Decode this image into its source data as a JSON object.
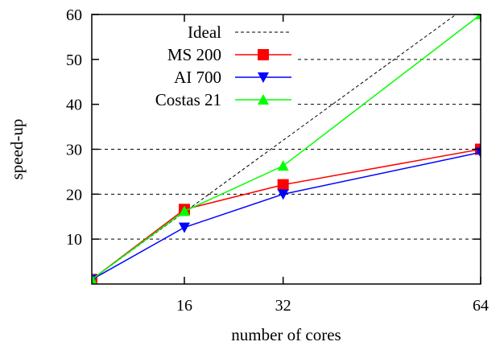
{
  "chart_data": {
    "type": "line",
    "title": "",
    "xlabel": "number of cores",
    "ylabel": "speed-up",
    "x_ticks": [
      16,
      32,
      64
    ],
    "y_ticks": [
      10,
      20,
      30,
      40,
      50,
      60
    ],
    "xlim": [
      1,
      64
    ],
    "ylim": [
      0,
      60
    ],
    "grid": "horizontal dashed",
    "legend_position": "top-left",
    "series": [
      {
        "name": "Ideal",
        "x": [
          1,
          64
        ],
        "y": [
          1,
          64
        ],
        "color": "#000000",
        "style": "dashed",
        "marker": "none"
      },
      {
        "name": "MS 200",
        "x": [
          1,
          16,
          32,
          64
        ],
        "y": [
          1,
          16.6,
          22.1,
          30
        ],
        "color": "#ff0000",
        "style": "solid",
        "marker": "square"
      },
      {
        "name": "AI 700",
        "x": [
          1,
          16,
          32,
          64
        ],
        "y": [
          1,
          12.6,
          20,
          29.3
        ],
        "color": "#0000ff",
        "style": "solid",
        "marker": "triangle-down"
      },
      {
        "name": "Costas 21",
        "x": [
          1,
          16,
          32,
          64
        ],
        "y": [
          1,
          16.2,
          26.3,
          60
        ],
        "color": "#00ff00",
        "style": "solid",
        "marker": "triangle-up"
      }
    ]
  }
}
